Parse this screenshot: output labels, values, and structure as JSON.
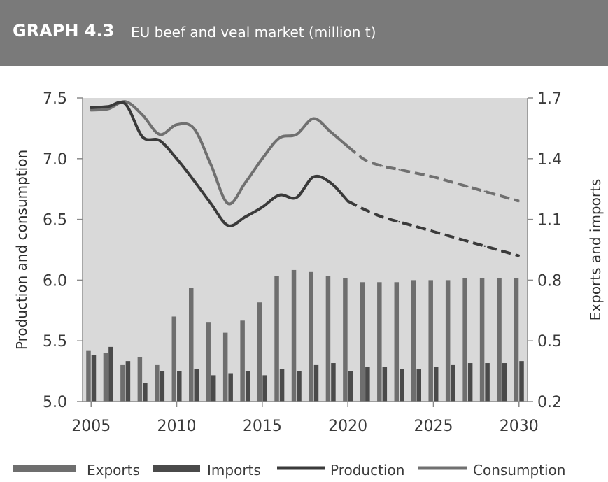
{
  "header": {
    "number": "GRAPH 4.3",
    "title": "EU beef and veal market (million t)"
  },
  "colors": {
    "header_bg": "#7a7a7a",
    "plot_bg": "#d9d9d9",
    "exports": "#6e6e6e",
    "imports": "#4a4a4a",
    "production": "#3a3a3a",
    "consumption": "#707070"
  },
  "chart_data": {
    "type": "bar",
    "title": "EU beef and veal market (million t)",
    "x": [
      2005,
      2006,
      2007,
      2008,
      2009,
      2010,
      2011,
      2012,
      2013,
      2014,
      2015,
      2016,
      2017,
      2018,
      2019,
      2020,
      2021,
      2022,
      2023,
      2024,
      2025,
      2026,
      2027,
      2028,
      2029,
      2030
    ],
    "x_ticks": [
      "2005",
      "2010",
      "2015",
      "2020",
      "2025",
      "2030"
    ],
    "y_left": {
      "label": "Production and consumption",
      "range": [
        5.0,
        7.5
      ],
      "ticks": [
        "5.0",
        "5.5",
        "6.0",
        "6.5",
        "7.0",
        "7.5"
      ]
    },
    "y_right": {
      "label": "Exports and imports",
      "range": [
        0.2,
        1.7
      ],
      "ticks": [
        "0.2",
        "0.5",
        "0.8",
        "1.1",
        "1.4",
        "1.7"
      ]
    },
    "projection_start": 2020,
    "series": [
      {
        "name": "Exports",
        "kind": "bar",
        "axis": "right",
        "values": [
          0.45,
          0.44,
          0.38,
          0.42,
          0.38,
          0.62,
          0.76,
          0.59,
          0.54,
          0.6,
          0.69,
          0.82,
          0.85,
          0.84,
          0.82,
          0.81,
          0.79,
          0.79,
          0.79,
          0.8,
          0.8,
          0.8,
          0.81,
          0.81,
          0.81,
          0.81
        ]
      },
      {
        "name": "Imports",
        "kind": "bar",
        "axis": "right",
        "values": [
          0.43,
          0.47,
          0.4,
          0.29,
          0.35,
          0.35,
          0.36,
          0.33,
          0.34,
          0.35,
          0.33,
          0.36,
          0.35,
          0.38,
          0.39,
          0.35,
          0.37,
          0.37,
          0.36,
          0.36,
          0.37,
          0.38,
          0.39,
          0.39,
          0.39,
          0.4
        ]
      },
      {
        "name": "Production",
        "kind": "line",
        "axis": "left",
        "values": [
          7.42,
          7.43,
          7.45,
          7.18,
          7.15,
          7.0,
          6.82,
          6.63,
          6.45,
          6.52,
          6.6,
          6.7,
          6.68,
          6.85,
          6.8,
          6.65,
          6.58,
          6.52,
          6.48,
          6.44,
          6.4,
          6.36,
          6.32,
          6.28,
          6.24,
          6.2
        ]
      },
      {
        "name": "Consumption",
        "kind": "line",
        "axis": "left",
        "values": [
          7.4,
          7.41,
          7.47,
          7.36,
          7.2,
          7.28,
          7.25,
          6.95,
          6.63,
          6.8,
          7.0,
          7.17,
          7.2,
          7.33,
          7.22,
          7.1,
          6.99,
          6.94,
          6.91,
          6.88,
          6.85,
          6.81,
          6.77,
          6.73,
          6.69,
          6.65
        ]
      }
    ],
    "legend": {
      "position": "bottom",
      "items": [
        "Exports",
        "Imports",
        "Production",
        "Consumption"
      ]
    },
    "grid": false
  }
}
